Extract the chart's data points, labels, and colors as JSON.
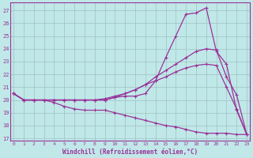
{
  "xlabel": "Windchill (Refroidissement éolien,°C)",
  "bg_color": "#c0e8e8",
  "grid_color": "#a0c0c0",
  "line_color": "#993399",
  "x_ticks": [
    0,
    1,
    2,
    3,
    4,
    5,
    6,
    7,
    8,
    9,
    10,
    11,
    12,
    13,
    14,
    15,
    16,
    17,
    18,
    19,
    20,
    21,
    22,
    23
  ],
  "y_ticks": [
    17,
    18,
    19,
    20,
    21,
    22,
    23,
    24,
    25,
    26,
    27
  ],
  "ylim": [
    16.8,
    27.6
  ],
  "xlim": [
    -0.3,
    23.3
  ],
  "line1_x": [
    0,
    1,
    2,
    3,
    4,
    5,
    6,
    7,
    8,
    9,
    10,
    11,
    12,
    13,
    14,
    15,
    16,
    17,
    18,
    19,
    20,
    21,
    22,
    23
  ],
  "line1_y": [
    20.5,
    20.0,
    20.0,
    20.0,
    20.0,
    20.0,
    20.0,
    20.0,
    20.0,
    20.0,
    20.2,
    20.3,
    20.3,
    20.5,
    21.5,
    23.3,
    25.0,
    26.7,
    26.8,
    27.2,
    23.8,
    22.8,
    19.2,
    17.3
  ],
  "line2_x": [
    0,
    1,
    2,
    3,
    4,
    5,
    6,
    7,
    8,
    9,
    10,
    11,
    12,
    13,
    14,
    15,
    16,
    17,
    18,
    19,
    20,
    21,
    22,
    23
  ],
  "line2_y": [
    20.5,
    20.0,
    20.0,
    20.0,
    20.0,
    20.0,
    20.0,
    20.0,
    20.0,
    20.0,
    20.2,
    20.5,
    20.8,
    21.2,
    21.8,
    22.3,
    22.8,
    23.3,
    23.8,
    24.0,
    23.9,
    21.8,
    20.4,
    17.3
  ],
  "line3_x": [
    0,
    1,
    2,
    3,
    4,
    5,
    6,
    7,
    8,
    9,
    10,
    11,
    12,
    13,
    14,
    15,
    16,
    17,
    18,
    19,
    20,
    21,
    22,
    23
  ],
  "line3_y": [
    20.5,
    20.0,
    20.0,
    20.0,
    20.0,
    20.0,
    20.0,
    20.0,
    20.0,
    20.1,
    20.3,
    20.5,
    20.8,
    21.2,
    21.5,
    21.8,
    22.2,
    22.5,
    22.7,
    22.8,
    22.7,
    21.0,
    19.3,
    17.3
  ],
  "line4_x": [
    0,
    1,
    2,
    3,
    4,
    5,
    6,
    7,
    8,
    9,
    10,
    11,
    12,
    13,
    14,
    15,
    16,
    17,
    18,
    19,
    20,
    21,
    22,
    23
  ],
  "line4_y": [
    20.5,
    20.0,
    20.0,
    20.0,
    19.8,
    19.5,
    19.3,
    19.2,
    19.2,
    19.2,
    19.0,
    18.8,
    18.6,
    18.4,
    18.2,
    18.0,
    17.9,
    17.7,
    17.5,
    17.4,
    17.4,
    17.4,
    17.3,
    17.3
  ]
}
